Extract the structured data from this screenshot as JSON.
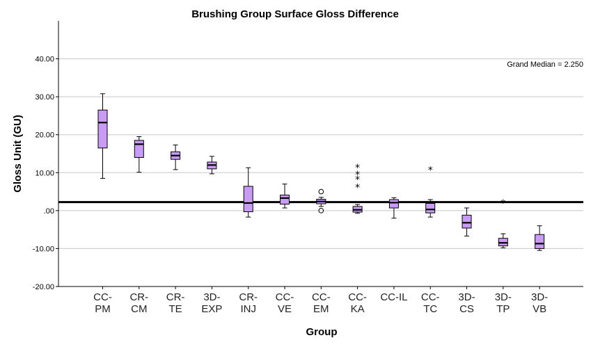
{
  "chart_data": {
    "type": "box",
    "title": "Brushing  Group Surface Gloss Difference",
    "xlabel": "Group",
    "ylabel": "Gloss Unit (GU)",
    "ylim": [
      -20,
      50
    ],
    "yticks": [
      -20,
      -10,
      0,
      10,
      20,
      30,
      40
    ],
    "ytick_labels": [
      "-20.00",
      "-10.00",
      ".00",
      "10.00",
      "20.00",
      "30.00",
      "40.00"
    ],
    "grid": "horizontal",
    "reference_line": {
      "value": 2.25,
      "label": "Grand Median = 2.250"
    },
    "box_color": "#c89cf5",
    "groups": [
      {
        "label": [
          "CC-",
          "PM"
        ],
        "whisker_low": 8.5,
        "q1": 16.5,
        "median": 23.2,
        "q3": 26.5,
        "whisker_high": 30.8,
        "outliers": []
      },
      {
        "label": [
          "CR-",
          "CM"
        ],
        "whisker_low": 10.1,
        "q1": 14.0,
        "median": 17.5,
        "q3": 18.5,
        "whisker_high": 19.5,
        "outliers": []
      },
      {
        "label": [
          "CR-",
          "TE"
        ],
        "whisker_low": 10.8,
        "q1": 13.5,
        "median": 14.5,
        "q3": 15.5,
        "whisker_high": 17.3,
        "outliers": []
      },
      {
        "label": [
          "3D-",
          "EXP"
        ],
        "whisker_low": 9.7,
        "q1": 11.0,
        "median": 12.0,
        "q3": 12.8,
        "whisker_high": 14.3,
        "outliers": []
      },
      {
        "label": [
          "CR-",
          "INJ"
        ],
        "whisker_low": -1.7,
        "q1": -0.3,
        "median": 2.0,
        "q3": 6.4,
        "whisker_high": 11.3,
        "outliers": []
      },
      {
        "label": [
          "CC-",
          "VE"
        ],
        "whisker_low": 0.7,
        "q1": 1.7,
        "median": 3.3,
        "q3": 4.1,
        "whisker_high": 7.0,
        "outliers": []
      },
      {
        "label": [
          "CC-",
          "EM"
        ],
        "whisker_low": 1.1,
        "q1": 1.8,
        "median": 2.4,
        "q3": 3.0,
        "whisker_high": 3.5,
        "outliers": [
          {
            "value": 5.0,
            "marker": "circle"
          },
          {
            "value": 0.0,
            "marker": "circle"
          }
        ]
      },
      {
        "label": [
          "CC-",
          "KA"
        ],
        "whisker_low": -0.7,
        "q1": -0.4,
        "median": 0.2,
        "q3": 1.1,
        "whisker_high": 1.6,
        "outliers": [
          {
            "value": 11.5,
            "marker": "star"
          },
          {
            "value": 9.7,
            "marker": "star"
          },
          {
            "value": 8.4,
            "marker": "star"
          },
          {
            "value": 6.3,
            "marker": "star"
          }
        ]
      },
      {
        "label": [
          "CC-IL"
        ],
        "whisker_low": -2.0,
        "q1": 0.7,
        "median": 2.1,
        "q3": 2.9,
        "whisker_high": 3.4,
        "outliers": []
      },
      {
        "label": [
          "CC-",
          "TC"
        ],
        "whisker_low": -1.7,
        "q1": -0.6,
        "median": 0.3,
        "q3": 1.9,
        "whisker_high": 2.9,
        "outliers": [
          {
            "value": 10.9,
            "marker": "star"
          }
        ]
      },
      {
        "label": [
          "3D-",
          "CS"
        ],
        "whisker_low": -6.7,
        "q1": -4.6,
        "median": -3.2,
        "q3": -1.2,
        "whisker_high": 0.7,
        "outliers": []
      },
      {
        "label": [
          "3D-",
          "TP"
        ],
        "whisker_low": -9.8,
        "q1": -9.3,
        "median": -8.5,
        "q3": -7.3,
        "whisker_high": -6.1,
        "outliers": [
          {
            "value": 2.2,
            "marker": "star"
          }
        ]
      },
      {
        "label": [
          "3D-",
          "VB"
        ],
        "whisker_low": -10.5,
        "q1": -10.0,
        "median": -8.7,
        "q3": -6.3,
        "whisker_high": -4.0,
        "outliers": []
      }
    ]
  }
}
